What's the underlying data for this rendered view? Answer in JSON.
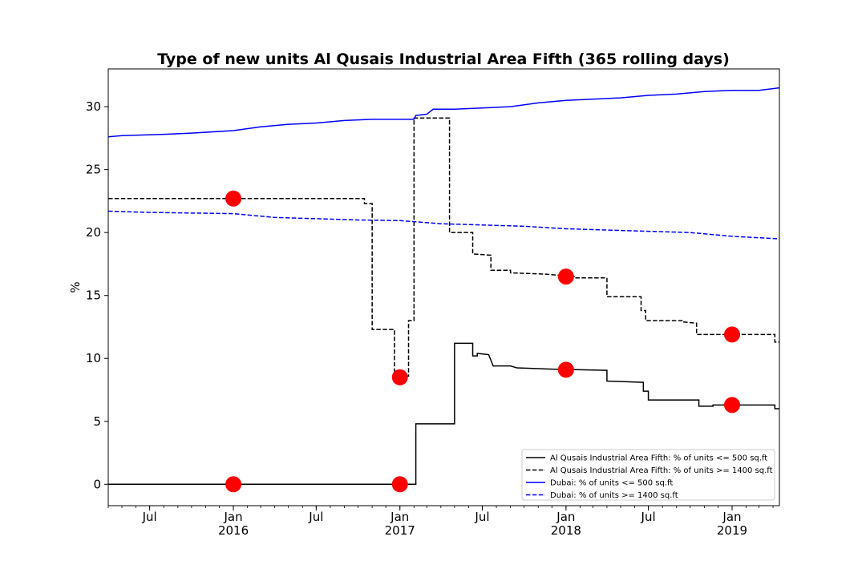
{
  "chart_data": {
    "type": "line",
    "title": "Type of new units Al Qusais Industrial Area Fifth (365 rolling days)",
    "xlabel": "",
    "ylabel": "%",
    "xlim": [
      "2015-04-01",
      "2019-04-15"
    ],
    "ylim": [
      -1.7,
      33
    ],
    "y_ticks": [
      0,
      5,
      10,
      15,
      20,
      25,
      30
    ],
    "x_ticks": [
      {
        "date": "2015-07-01",
        "label": "Jul",
        "sublabel": ""
      },
      {
        "date": "2016-01-01",
        "label": "Jan",
        "sublabel": "2016"
      },
      {
        "date": "2016-07-01",
        "label": "Jul",
        "sublabel": ""
      },
      {
        "date": "2017-01-01",
        "label": "Jan",
        "sublabel": "2017"
      },
      {
        "date": "2017-07-01",
        "label": "Jul",
        "sublabel": ""
      },
      {
        "date": "2018-01-01",
        "label": "Jan",
        "sublabel": "2018"
      },
      {
        "date": "2018-07-01",
        "label": "Jul",
        "sublabel": ""
      },
      {
        "date": "2019-01-01",
        "label": "Jan",
        "sublabel": "2019"
      }
    ],
    "grid": false,
    "legend_position": "bottom-right",
    "series": [
      {
        "name": "Al Qusais Industrial Area Fifth: % of units <= 500 sq.ft",
        "color": "#000000",
        "dash": "solid",
        "step": true,
        "points": [
          [
            "2015-04-01",
            0
          ],
          [
            "2017-02-05",
            0
          ],
          [
            "2017-02-05",
            4.8
          ],
          [
            "2017-05-01",
            4.8
          ],
          [
            "2017-05-01",
            11.2
          ],
          [
            "2017-06-10",
            11.2
          ],
          [
            "2017-06-10",
            10.2
          ],
          [
            "2017-06-20",
            10.2
          ],
          [
            "2017-06-20",
            10.4
          ],
          [
            "2017-07-15",
            10.3
          ],
          [
            "2017-07-25",
            9.4
          ],
          [
            "2017-09-01",
            9.4
          ],
          [
            "2017-09-15",
            9.25
          ],
          [
            "2017-12-01",
            9.15
          ],
          [
            "2018-02-01",
            9.1
          ],
          [
            "2018-04-01",
            9.05
          ],
          [
            "2018-04-01",
            8.2
          ],
          [
            "2018-06-20",
            8.1
          ],
          [
            "2018-06-20",
            7.4
          ],
          [
            "2018-07-01",
            7.4
          ],
          [
            "2018-07-01",
            6.7
          ],
          [
            "2018-10-20",
            6.7
          ],
          [
            "2018-10-20",
            6.2
          ],
          [
            "2018-11-20",
            6.2
          ],
          [
            "2018-11-20",
            6.3
          ],
          [
            "2019-04-05",
            6.3
          ],
          [
            "2019-04-05",
            6.0
          ],
          [
            "2019-04-15",
            6.0
          ]
        ]
      },
      {
        "name": "Al Qusais Industrial Area Fifth: % of units >= 1400 sq.ft",
        "color": "#000000",
        "dash": "dashed",
        "step": true,
        "points": [
          [
            "2015-04-01",
            22.7
          ],
          [
            "2016-10-15",
            22.7
          ],
          [
            "2016-10-15",
            22.3
          ],
          [
            "2016-11-01",
            22.3
          ],
          [
            "2016-11-01",
            12.3
          ],
          [
            "2016-12-20",
            12.3
          ],
          [
            "2016-12-20",
            8.6
          ],
          [
            "2017-01-20",
            8.6
          ],
          [
            "2017-01-20",
            13.0
          ],
          [
            "2017-02-01",
            13.0
          ],
          [
            "2017-02-01",
            29.1
          ],
          [
            "2017-04-20",
            29.1
          ],
          [
            "2017-04-20",
            20.0
          ],
          [
            "2017-06-10",
            20.0
          ],
          [
            "2017-06-10",
            18.3
          ],
          [
            "2017-07-20",
            18.2
          ],
          [
            "2017-07-20",
            17.0
          ],
          [
            "2017-09-01",
            17.0
          ],
          [
            "2017-09-01",
            16.8
          ],
          [
            "2017-11-15",
            16.7
          ],
          [
            "2018-01-20",
            16.5
          ],
          [
            "2018-01-20",
            16.4
          ],
          [
            "2018-04-01",
            16.4
          ],
          [
            "2018-04-01",
            14.9
          ],
          [
            "2018-06-15",
            14.9
          ],
          [
            "2018-06-15",
            13.8
          ],
          [
            "2018-06-25",
            13.8
          ],
          [
            "2018-06-25",
            13.0
          ],
          [
            "2018-09-15",
            13.0
          ],
          [
            "2018-09-15",
            12.9
          ],
          [
            "2018-10-15",
            12.8
          ],
          [
            "2018-10-15",
            11.9
          ],
          [
            "2019-04-05",
            11.9
          ],
          [
            "2019-04-05",
            11.3
          ],
          [
            "2019-04-15",
            11.3
          ]
        ]
      },
      {
        "name": "Dubai: % of units <= 500 sq.ft",
        "color": "#0000ff",
        "dash": "solid",
        "step": false,
        "points": [
          [
            "2015-04-01",
            27.6
          ],
          [
            "2015-05-01",
            27.7
          ],
          [
            "2015-08-01",
            27.8
          ],
          [
            "2015-10-01",
            27.9
          ],
          [
            "2016-01-01",
            28.1
          ],
          [
            "2016-03-01",
            28.4
          ],
          [
            "2016-05-01",
            28.6
          ],
          [
            "2016-07-01",
            28.7
          ],
          [
            "2016-09-01",
            28.9
          ],
          [
            "2016-11-01",
            29.0
          ],
          [
            "2017-01-01",
            29.0
          ],
          [
            "2017-02-01",
            29.0
          ],
          [
            "2017-02-05",
            29.3
          ],
          [
            "2017-03-01",
            29.4
          ],
          [
            "2017-03-15",
            29.8
          ],
          [
            "2017-05-01",
            29.8
          ],
          [
            "2017-07-01",
            29.9
          ],
          [
            "2017-09-01",
            30.0
          ],
          [
            "2017-11-01",
            30.3
          ],
          [
            "2018-01-01",
            30.5
          ],
          [
            "2018-03-01",
            30.6
          ],
          [
            "2018-05-01",
            30.7
          ],
          [
            "2018-07-01",
            30.9
          ],
          [
            "2018-09-01",
            31.0
          ],
          [
            "2018-11-01",
            31.2
          ],
          [
            "2019-01-01",
            31.3
          ],
          [
            "2019-03-01",
            31.3
          ],
          [
            "2019-04-15",
            31.5
          ]
        ]
      },
      {
        "name": "Dubai: % of units >= 1400 sq.ft",
        "color": "#0000ff",
        "dash": "dashed",
        "step": false,
        "points": [
          [
            "2015-04-01",
            21.7
          ],
          [
            "2015-07-01",
            21.6
          ],
          [
            "2015-10-01",
            21.55
          ],
          [
            "2016-01-01",
            21.5
          ],
          [
            "2016-04-01",
            21.2
          ],
          [
            "2016-07-01",
            21.1
          ],
          [
            "2016-10-01",
            21.0
          ],
          [
            "2017-01-01",
            20.95
          ],
          [
            "2017-04-01",
            20.7
          ],
          [
            "2017-07-01",
            20.6
          ],
          [
            "2017-10-01",
            20.5
          ],
          [
            "2018-01-01",
            20.3
          ],
          [
            "2018-04-01",
            20.2
          ],
          [
            "2018-07-01",
            20.1
          ],
          [
            "2018-10-01",
            20.0
          ],
          [
            "2019-01-01",
            19.7
          ],
          [
            "2019-04-15",
            19.5
          ]
        ]
      }
    ],
    "markers": {
      "color": "#ff0000",
      "points": [
        [
          "2016-01-01",
          22.7
        ],
        [
          "2016-01-01",
          0
        ],
        [
          "2017-01-01",
          8.5
        ],
        [
          "2017-01-01",
          0
        ],
        [
          "2018-01-01",
          16.5
        ],
        [
          "2018-01-01",
          9.1
        ],
        [
          "2019-01-01",
          11.9
        ],
        [
          "2019-01-01",
          6.3
        ]
      ]
    }
  }
}
